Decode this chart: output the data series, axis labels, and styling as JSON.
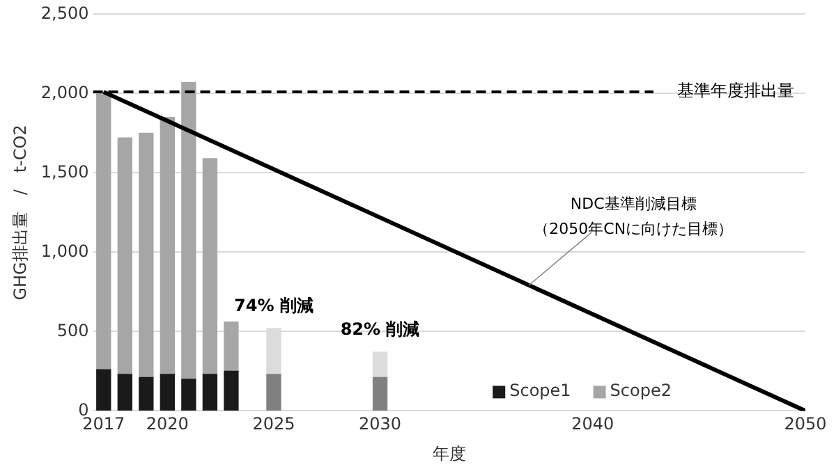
{
  "chart_data": {
    "type": "bar",
    "stacked": true,
    "x": [
      2017,
      2018,
      2019,
      2020,
      2021,
      2022,
      2023,
      2025,
      2030
    ],
    "series": [
      {
        "name": "Scope1",
        "color": "#1a1a1a",
        "colors": [
          "#1a1a1a",
          "#1a1a1a",
          "#1a1a1a",
          "#1a1a1a",
          "#1a1a1a",
          "#1a1a1a",
          "#1a1a1a",
          "#808080",
          "#808080"
        ],
        "values": [
          260,
          230,
          210,
          230,
          200,
          230,
          250,
          230,
          210
        ]
      },
      {
        "name": "Scope2",
        "color": "#a6a6a6",
        "colors": [
          "#a6a6a6",
          "#a6a6a6",
          "#a6a6a6",
          "#a6a6a6",
          "#a6a6a6",
          "#a6a6a6",
          "#a6a6a6",
          "#dcdcdc",
          "#dcdcdc"
        ],
        "values": [
          1750,
          1490,
          1540,
          1620,
          1870,
          1360,
          310,
          290,
          160
        ]
      },
      {
        "type": "line",
        "color": "#000000",
        "x": [
          2017,
          2050
        ],
        "values": [
          2010,
          0
        ]
      }
    ],
    "xlim": [
      2016.5,
      2050
    ],
    "xticks": [
      2017,
      2020,
      2025,
      2030,
      2040,
      2050
    ],
    "ylim": [
      0,
      2500
    ],
    "yticks": [
      0,
      500,
      {
        "value": 1000,
        "label": "1,000"
      },
      {
        "value": 1500,
        "label": "1,500"
      },
      {
        "value": 2000,
        "label": "2,000"
      },
      {
        "value": 2500,
        "label": "2,500"
      }
    ],
    "xlabel": "年度",
    "ylabel": "GHG排出量　/　t-CO2",
    "ref_lines": [
      {
        "axis": "y",
        "value": 2010,
        "label": "基準年度排出量",
        "line_style": "dashed",
        "color": "#000000"
      }
    ],
    "annotations": [
      {
        "text": "74% 削減",
        "x": 2025,
        "y": 515
      },
      {
        "text": "82% 削減",
        "x": 2030,
        "y": 368
      },
      {
        "text": "NDC基準削減目標",
        "x": 2037,
        "y": 792
      },
      "（2050年CNに向けた目標）"
    ],
    "grid": "y",
    "legend": "bottom right",
    "marker": "none"
  }
}
